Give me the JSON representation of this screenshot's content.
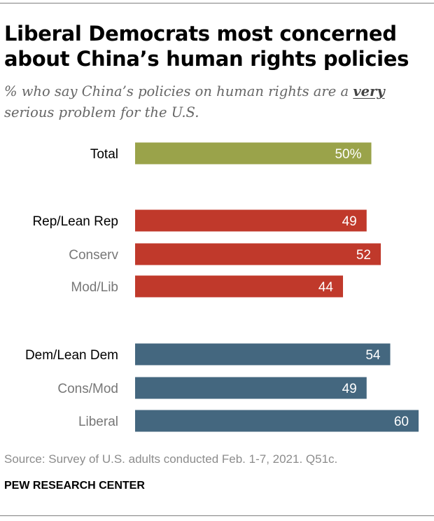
{
  "title": "Liberal Democrats most concerned about China’s human rights policies",
  "subtitle": {
    "before": "% who say China’s policies on human rights are a ",
    "emphasis": "very",
    "after": " serious problem for the U.S."
  },
  "source": "Source: Survey of U.S. adults conducted Feb. 1-7, 2021. Q51c.",
  "organization": "PEW RESEARCH CENTER",
  "colors": {
    "total": "#9aa34a",
    "rep": "#c0392b",
    "dem": "#44677f",
    "label_main": "#000000",
    "label_sub": "#777777",
    "value_text": "#ffffff"
  },
  "chart_data": {
    "type": "bar",
    "orientation": "horizontal",
    "xlim": [
      0,
      60
    ],
    "categories": [
      "Total",
      "Rep/Lean Rep",
      "Conserv",
      "Mod/Lib",
      "Dem/Lean Dem",
      "Cons/Mod",
      "Liberal"
    ],
    "values": [
      50,
      49,
      52,
      44,
      54,
      49,
      60
    ],
    "value_labels": [
      "50%",
      "49",
      "52",
      "44",
      "54",
      "49",
      "60"
    ],
    "groups": [
      "total",
      "rep",
      "rep",
      "rep",
      "dem",
      "dem",
      "dem"
    ],
    "label_styles": [
      "main",
      "main",
      "sub",
      "sub",
      "main",
      "sub",
      "sub"
    ]
  }
}
